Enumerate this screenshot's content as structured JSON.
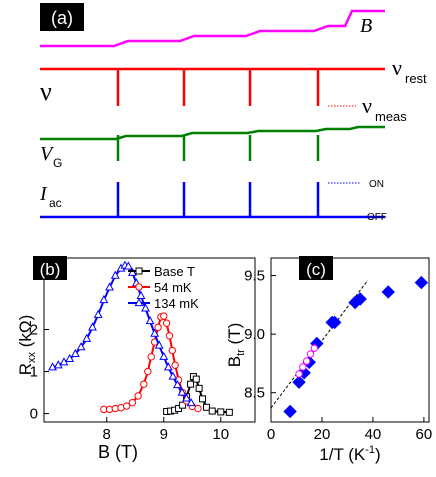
{
  "colors": {
    "B": "#ff00ff",
    "nu": "#ff0000",
    "VG": "#008000",
    "Iac": "#0000ff",
    "base": "#000000",
    "mk54": "#ff0000",
    "mk134": "#0000ff",
    "diamond": "#0000ff",
    "circle": "#ff00ff"
  },
  "panel_a": {
    "tag": "(a)",
    "labels": {
      "B": "B",
      "nu": "ν",
      "nu_rest": "ν",
      "nu_rest_sub": "rest",
      "nu_meas": "ν",
      "nu_meas_sub": "meas",
      "VG": "V",
      "VG_sub": "G",
      "Iac": "I",
      "Iac_sub": "ac",
      "on": "ON",
      "off": "OFF"
    },
    "pulse_count": 4
  },
  "chart_data": [
    {
      "type": "line",
      "panel": "(b)",
      "xlabel": "B (T)",
      "ylabel": "R_xx (kΩ)",
      "xlim": [
        6.9,
        10.6
      ],
      "ylim": [
        -0.2,
        3.7
      ],
      "xticks": [
        8,
        9,
        10
      ],
      "yticks": [
        0,
        1,
        2
      ],
      "legend_position": "top-right",
      "series": [
        {
          "name": "Base T",
          "color": "#000000",
          "marker": "square",
          "points": [
            [
              9.05,
              0.05
            ],
            [
              9.12,
              0.06
            ],
            [
              9.19,
              0.08
            ],
            [
              9.26,
              0.12
            ],
            [
              9.33,
              0.2
            ],
            [
              9.4,
              0.4
            ],
            [
              9.47,
              0.7
            ],
            [
              9.52,
              0.88
            ],
            [
              9.57,
              0.82
            ],
            [
              9.62,
              0.6
            ],
            [
              9.68,
              0.35
            ],
            [
              9.75,
              0.15
            ],
            [
              9.85,
              0.06
            ],
            [
              10.0,
              0.04
            ],
            [
              10.15,
              0.03
            ]
          ]
        },
        {
          "name": "54 mK",
          "color": "#ff0000",
          "marker": "circle",
          "points": [
            [
              7.95,
              0.1
            ],
            [
              8.05,
              0.1
            ],
            [
              8.15,
              0.12
            ],
            [
              8.25,
              0.14
            ],
            [
              8.35,
              0.18
            ],
            [
              8.45,
              0.26
            ],
            [
              8.55,
              0.42
            ],
            [
              8.65,
              0.7
            ],
            [
              8.72,
              1.0
            ],
            [
              8.78,
              1.35
            ],
            [
              8.84,
              1.7
            ],
            [
              8.9,
              2.05
            ],
            [
              8.95,
              2.3
            ],
            [
              9.0,
              2.32
            ],
            [
              9.05,
              2.15
            ],
            [
              9.1,
              1.85
            ],
            [
              9.15,
              1.5
            ],
            [
              9.2,
              1.15
            ],
            [
              9.26,
              0.8
            ],
            [
              9.33,
              0.5
            ],
            [
              9.4,
              0.3
            ],
            [
              9.5,
              0.17
            ],
            [
              9.6,
              0.12
            ]
          ]
        },
        {
          "name": "134 mK",
          "color": "#0000ff",
          "marker": "triangle",
          "points": [
            [
              7.05,
              1.1
            ],
            [
              7.15,
              1.15
            ],
            [
              7.25,
              1.22
            ],
            [
              7.35,
              1.3
            ],
            [
              7.45,
              1.42
            ],
            [
              7.55,
              1.58
            ],
            [
              7.65,
              1.78
            ],
            [
              7.75,
              2.05
            ],
            [
              7.85,
              2.35
            ],
            [
              7.95,
              2.7
            ],
            [
              8.05,
              3.0
            ],
            [
              8.15,
              3.28
            ],
            [
              8.25,
              3.45
            ],
            [
              8.32,
              3.52
            ],
            [
              8.38,
              3.5
            ],
            [
              8.45,
              3.35
            ],
            [
              8.52,
              3.1
            ],
            [
              8.6,
              2.8
            ],
            [
              8.68,
              2.5
            ],
            [
              8.76,
              2.2
            ],
            [
              8.84,
              1.9
            ],
            [
              8.92,
              1.62
            ],
            [
              9.0,
              1.35
            ],
            [
              9.08,
              1.1
            ],
            [
              9.16,
              0.88
            ],
            [
              9.24,
              0.68
            ],
            [
              9.32,
              0.5
            ],
            [
              9.4,
              0.36
            ],
            [
              9.48,
              0.25
            ]
          ]
        }
      ]
    },
    {
      "type": "scatter",
      "panel": "(c)",
      "xlabel": "1/T (K⁻¹)",
      "ylabel": "B_tr (T)",
      "xlim": [
        0,
        62
      ],
      "ylim": [
        8.25,
        9.65
      ],
      "xticks": [
        0,
        20,
        40,
        60
      ],
      "yticks": [
        8.5,
        9.0,
        9.5
      ],
      "fit_line": [
        [
          0,
          8.37
        ],
        [
          38,
          9.46
        ]
      ],
      "series": [
        {
          "marker": "diamond",
          "color": "#0000ff",
          "points": [
            [
              7.5,
              8.34
            ],
            [
              11,
              8.59
            ],
            [
              13,
              8.67
            ],
            [
              15,
              8.76
            ],
            [
              18,
              8.92
            ],
            [
              24,
              9.1
            ],
            [
              25,
              9.1
            ],
            [
              33,
              9.27
            ],
            [
              35,
              9.3
            ],
            [
              46,
              9.36
            ],
            [
              59,
              9.44
            ]
          ]
        },
        {
          "marker": "circle",
          "color": "#ff00ff",
          "points": [
            [
              11,
              8.66
            ],
            [
              12.5,
              8.72
            ],
            [
              14,
              8.77
            ],
            [
              15.5,
              8.83
            ],
            [
              17,
              8.88
            ]
          ]
        }
      ]
    }
  ]
}
